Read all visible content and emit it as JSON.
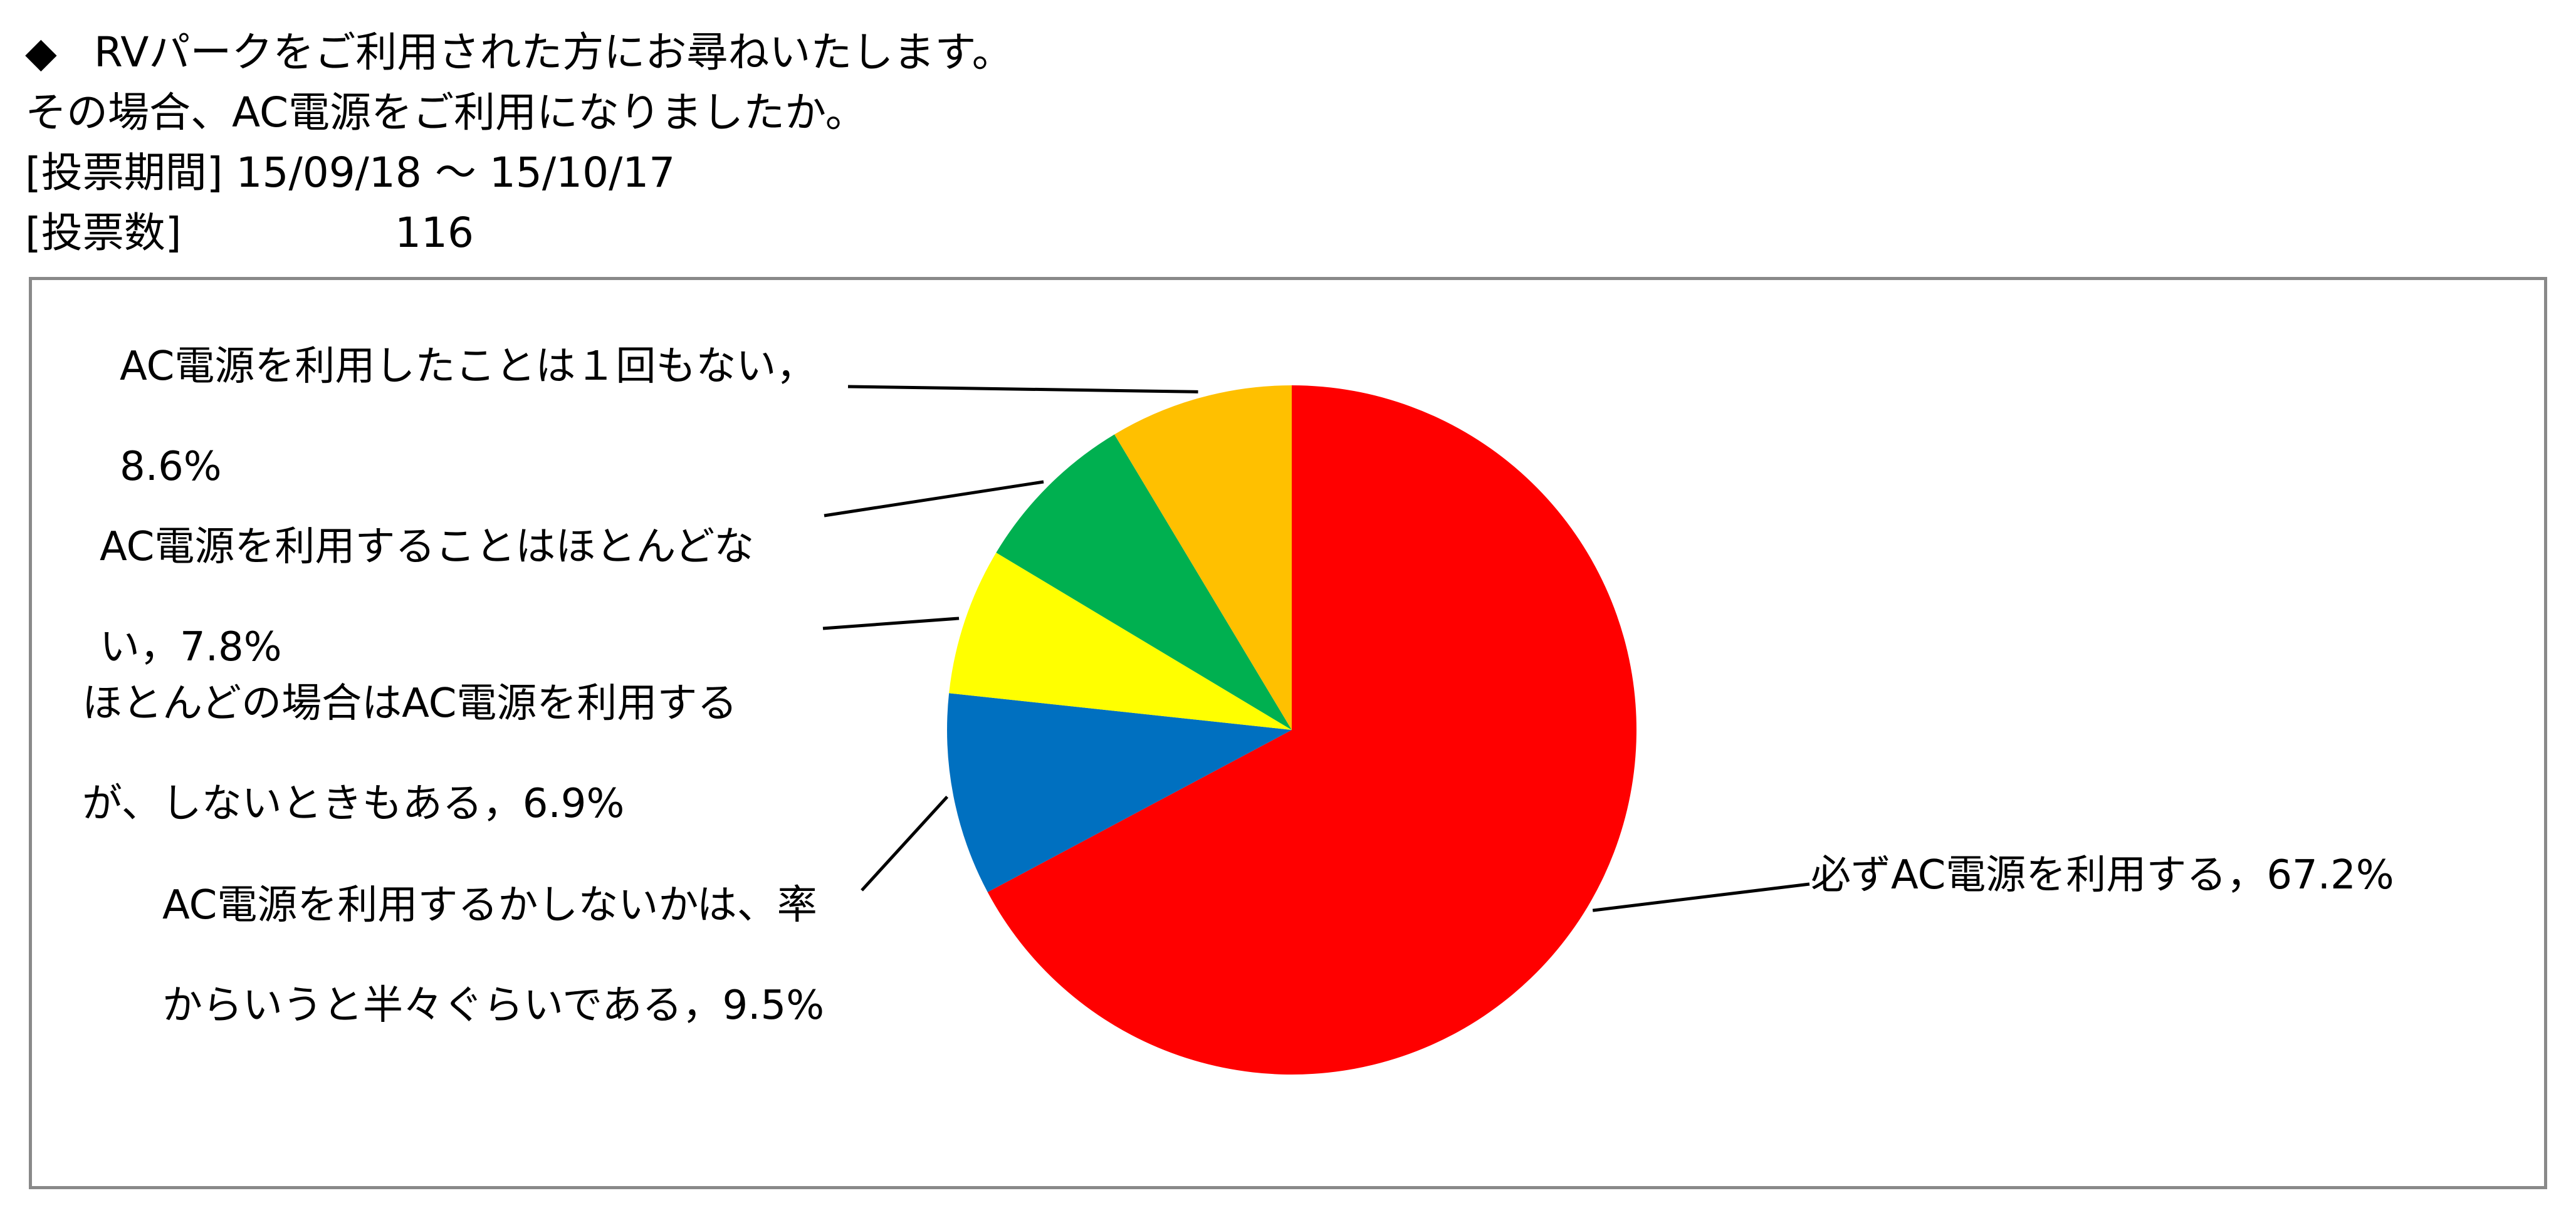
{
  "header": {
    "diamond": "◆",
    "line1": "RVパークをご利用された方にお尋ねいたします。",
    "line2": "その場合、AC電源をご利用になりましたか。",
    "period_label": "[投票期間]",
    "period_value": "15/09/18 〜 15/10/17",
    "votes_label": "[投票数]",
    "votes_value": "116"
  },
  "chart_data": {
    "type": "pie",
    "title": "",
    "start_angle_deg": 0,
    "direction": "clockwise",
    "slices": [
      {
        "label": "必ずAC電源を利用する",
        "value": 67.2,
        "value_text": "67.2%",
        "color": "#FF0000"
      },
      {
        "label": "AC電源を利用するかしないかは、率からいうと半々ぐらいである",
        "value": 9.5,
        "value_text": "9.5%",
        "color": "#0070C0"
      },
      {
        "label": "ほとんどの場合はAC電源を利用するが、しないときもある",
        "value": 6.9,
        "value_text": "6.9%",
        "color": "#FFFF00"
      },
      {
        "label": "AC電源を利用することはほとんどない",
        "value": 7.8,
        "value_text": "7.8%",
        "color": "#00B050"
      },
      {
        "label": "AC電源を利用したことは１回もない",
        "value": 8.6,
        "value_text": "8.6%",
        "color": "#FFC000"
      }
    ],
    "labels_text": [
      {
        "line1": "必ずAC電源を利用する，67.2%",
        "line2": ""
      },
      {
        "line1": "AC電源を利用するかしないかは、率",
        "line2": "からいうと半々ぐらいである，9.5%"
      },
      {
        "line1": "ほとんどの場合はAC電源を利用する",
        "line2": "が、しないときもある，6.9%"
      },
      {
        "line1": "AC電源を利用することはほとんどな",
        "line2": "い，7.8%"
      },
      {
        "line1": "AC電源を利用したことは１回もない，",
        "line2": "8.6%"
      }
    ]
  }
}
